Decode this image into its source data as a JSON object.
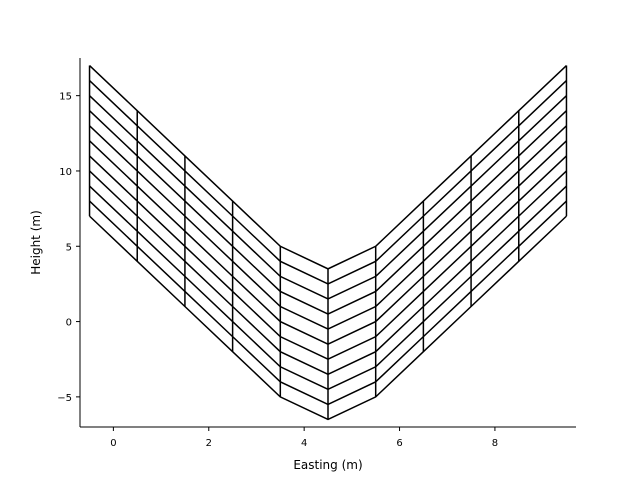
{
  "chart_data": {
    "type": "line",
    "title": "",
    "xlabel": "Easting (m)",
    "ylabel": "Height (m)",
    "xlim": [
      -0.7,
      9.7
    ],
    "ylim": [
      -7,
      17.5
    ],
    "x_ticks": [
      0,
      2,
      4,
      6,
      8
    ],
    "x_tick_labels": [
      "0",
      "2",
      "4",
      "6",
      "8"
    ],
    "y_ticks": [
      -5,
      0,
      5,
      10,
      15
    ],
    "y_tick_labels": [
      "−5",
      "0",
      "5",
      "10",
      "15"
    ],
    "grid": false,
    "spines": [
      "left",
      "bottom"
    ],
    "line_color": "#000000",
    "mesh": {
      "column_x": [
        -0.5,
        0.5,
        1.5,
        2.5,
        3.5,
        4.5,
        5.5,
        6.5,
        7.5,
        8.5,
        9.5
      ],
      "bottom_surface": [
        7,
        4,
        1,
        -2,
        -5,
        -6.5,
        -5,
        -2,
        1,
        4,
        7
      ],
      "top_surface": [
        17,
        14,
        11,
        8,
        5,
        3.5,
        5,
        8,
        11,
        14,
        17
      ],
      "layer_count": 10
    }
  }
}
